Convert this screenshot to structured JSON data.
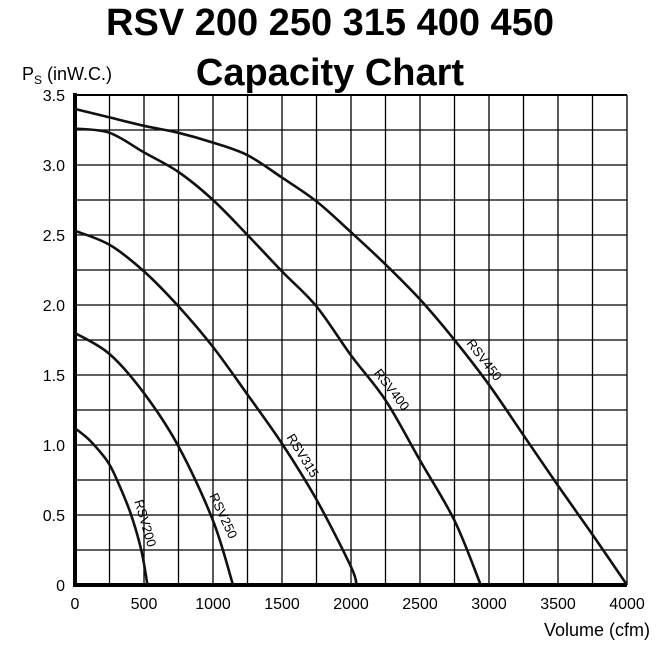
{
  "chart_data": {
    "type": "line",
    "title": [
      "RSV 200 250 315 400 450",
      "Capacity Chart"
    ],
    "xlabel": "Volume (cfm)",
    "ylabel_main": "P",
    "ylabel_sub": "S",
    "ylabel_unit": "(inW.C.)",
    "xlim": [
      0,
      4000
    ],
    "ylim": [
      0,
      3.5
    ],
    "grid": true,
    "x_ticks": [
      0,
      500,
      1000,
      1500,
      2000,
      2500,
      3000,
      3500,
      4000
    ],
    "y_ticks": [
      "0",
      "0.5",
      "1.0",
      "1.5",
      "2.0",
      "2.5",
      "3.0",
      "3.5"
    ],
    "series": [
      {
        "name": "RSV200",
        "x": [
          0,
          100,
          200,
          250,
          300,
          400,
          480,
          525
        ],
        "y": [
          1.12,
          1.04,
          0.93,
          0.86,
          0.76,
          0.52,
          0.25,
          0
        ]
      },
      {
        "name": "RSV250",
        "x": [
          0,
          250,
          500,
          750,
          1000,
          1145
        ],
        "y": [
          1.8,
          1.65,
          1.37,
          0.99,
          0.46,
          0
        ]
      },
      {
        "name": "RSV315",
        "x": [
          0,
          250,
          500,
          750,
          1000,
          1250,
          1500,
          1750,
          2000,
          2040
        ],
        "y": [
          2.53,
          2.43,
          2.24,
          1.99,
          1.7,
          1.36,
          1.01,
          0.61,
          0.13,
          0
        ]
      },
      {
        "name": "RSV400",
        "x": [
          0,
          250,
          500,
          750,
          1000,
          1250,
          1500,
          1750,
          2000,
          2250,
          2500,
          2750,
          2940
        ],
        "y": [
          3.26,
          3.23,
          3.09,
          2.95,
          2.75,
          2.5,
          2.24,
          1.99,
          1.64,
          1.32,
          0.89,
          0.46,
          0
        ]
      },
      {
        "name": "RSV450",
        "x": [
          0,
          250,
          500,
          750,
          1000,
          1250,
          1500,
          1750,
          2000,
          2250,
          2500,
          2750,
          3000,
          3250,
          3500,
          3750,
          4000
        ],
        "y": [
          3.4,
          3.34,
          3.28,
          3.23,
          3.16,
          3.07,
          2.91,
          2.74,
          2.52,
          2.29,
          2.04,
          1.75,
          1.43,
          1.07,
          0.71,
          0.36,
          0
        ]
      }
    ],
    "label_positions_cfm": {
      "RSV200": 430,
      "RSV250": 1000,
      "RSV315": 1580,
      "RSV400": 2230,
      "RSV450": 2900
    }
  }
}
